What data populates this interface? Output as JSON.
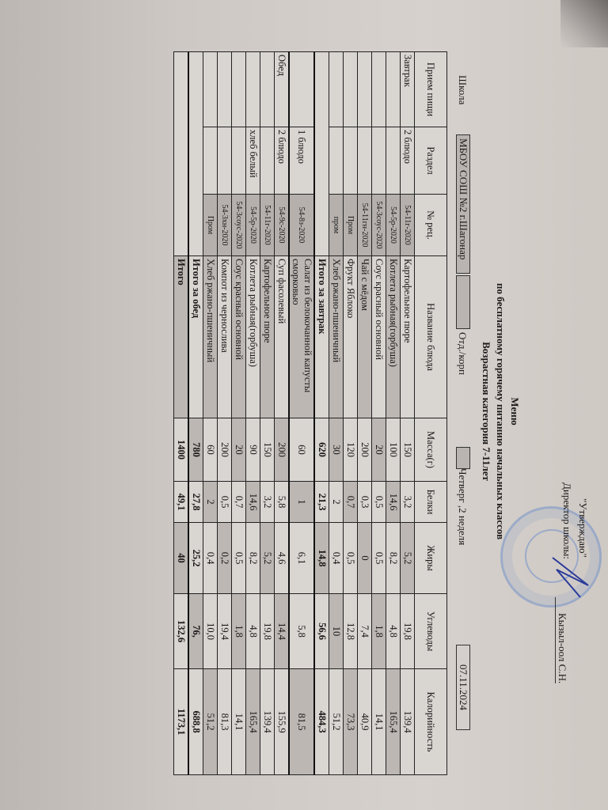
{
  "header": {
    "approved": "\"Утверждаю\"",
    "director": "Директор школы:",
    "director_name": "Кызыл-оол С.Н.",
    "title": "Меню",
    "subtitle": "по бесплатному горячему питанию начальных классов",
    "age": "Возрастная категория 7-11лет",
    "school_label": "Школа",
    "school": "МБОУ СОШ №2 г.Шагонар",
    "dept_label": "Отд./корп",
    "day": "Четверг ,2 неделя",
    "date": "07.11.2024",
    "stamp_text": "МБОУ СОШ №2 города Шагонар"
  },
  "table": {
    "columns": [
      "Прием пищи",
      "Раздел",
      "№ рец.",
      "Название блюда",
      "Масса(г)",
      "Белки",
      "Жиры",
      "Углеводы",
      "Калорийность"
    ],
    "rows": [
      {
        "meal": "Завтрак",
        "section": "2 блюдо",
        "recipe": "54-11г-2020",
        "name": "Картофельное пюре",
        "mass": "150",
        "protein": "3,2",
        "fat": "5,2",
        "carbs": "19,8",
        "kcal": "139,4"
      },
      {
        "meal": "",
        "section": "",
        "recipe": "54-5р-2020",
        "name": "Котлета рыбная(горбуша)",
        "mass": "100",
        "protein": "14,6",
        "fat": "8,2",
        "carbs": "4,8",
        "kcal": "165,4"
      },
      {
        "meal": "",
        "section": "",
        "recipe": "54-3соус-2020",
        "name": "Соус красный основной",
        "mass": "20",
        "protein": "0,5",
        "fat": "0,5",
        "carbs": "1,8",
        "kcal": "14,1"
      },
      {
        "meal": "",
        "section": "",
        "recipe": "54-11гн-2020",
        "name": "Чай с мёдом",
        "mass": "200",
        "protein": "0,3",
        "fat": "0",
        "carbs": "7,4",
        "kcal": "40,9"
      },
      {
        "meal": "",
        "section": "",
        "recipe": "Пром",
        "name": "Фрукт Яблоко",
        "mass": "120",
        "protein": "0,7",
        "fat": "0,5",
        "carbs": "12,8",
        "kcal": "73,3"
      },
      {
        "meal": "",
        "section": "",
        "recipe": "пром",
        "name": "Хлеб ржано-пшеничный",
        "mass": "30",
        "protein": "2",
        "fat": "0,4",
        "carbs": "10",
        "kcal": "51,2"
      },
      {
        "total": true,
        "meal": "",
        "section": "",
        "recipe": "",
        "name": "Итого за  завтрак",
        "mass": "620",
        "protein": "21,3",
        "fat": "14,8",
        "carbs": "56,6",
        "kcal": "484,3"
      },
      {
        "meal": "",
        "section": "1 блюдо",
        "recipe": "54-8з-2020",
        "name": "Салат из белокочанной капусты сморковью",
        "mass": "60",
        "protein": "1",
        "fat": "6,1",
        "carbs": "5,8",
        "kcal": "81,5"
      },
      {
        "meal": "Обед",
        "section": "2 блюдо",
        "recipe": "54-9с-2020",
        "name": "Суп  фасолевый",
        "mass": "200",
        "protein": "5,8",
        "fat": "4,6",
        "carbs": "14,4",
        "kcal": "155,9"
      },
      {
        "meal": "",
        "section": "",
        "recipe": "54-11г-2020",
        "name": "Картофельное пюре",
        "mass": "150",
        "protein": "3,2",
        "fat": "5,2",
        "carbs": "19,8",
        "kcal": "139,4"
      },
      {
        "meal": "",
        "section": "хлеб белый",
        "recipe": "54-5р-2020",
        "name": "Котлета рыбная(горбуша)",
        "mass": "90",
        "protein": "14,6",
        "fat": "8,2",
        "carbs": "4,8",
        "kcal": "165,4"
      },
      {
        "meal": "",
        "section": "",
        "recipe": "54-3соус-2020",
        "name": "Соус красный основной",
        "mass": "20",
        "protein": "0,7",
        "fat": "0,5",
        "carbs": "1,8",
        "kcal": "14,1"
      },
      {
        "meal": "",
        "section": "",
        "recipe": "54-3хн-2020",
        "name": "Компот  из чернослива",
        "mass": "200",
        "protein": "0,5",
        "fat": "0,2",
        "carbs": "19,4",
        "kcal": "81,3"
      },
      {
        "meal": "",
        "section": "",
        "recipe": "Пром",
        "name": "Хлеб ржано-пшеничный",
        "mass": "60",
        "protein": "2",
        "fat": "0,4",
        "carbs": "10,0",
        "kcal": "51,2"
      },
      {
        "total": true,
        "meal": "",
        "section": "",
        "recipe": "",
        "name": "Итого за обед",
        "mass": "780",
        "protein": "27,8",
        "fat": "25,2",
        "carbs": "76,",
        "kcal": "688,8"
      },
      {
        "total": true,
        "meal": "",
        "section": "",
        "recipe": "",
        "name": "Итого",
        "mass": "1400",
        "protein": "49,1",
        "fat": "40",
        "carbs": "132,6",
        "kcal": "1173,1"
      }
    ]
  }
}
